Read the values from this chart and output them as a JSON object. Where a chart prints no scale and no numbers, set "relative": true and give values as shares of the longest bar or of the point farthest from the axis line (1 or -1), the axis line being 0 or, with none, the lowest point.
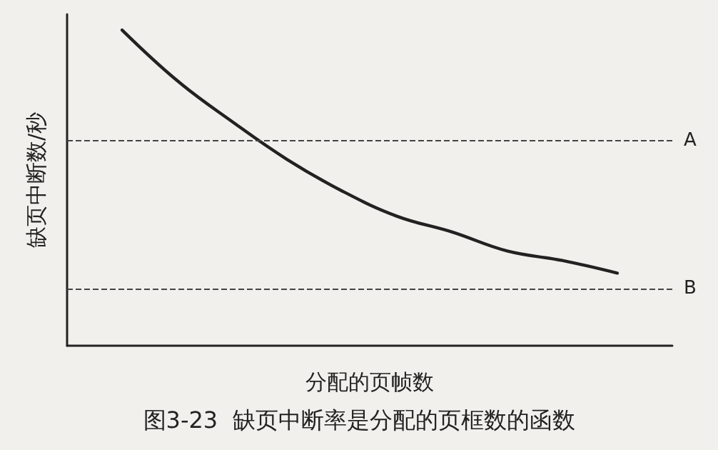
{
  "chart_data": {
    "type": "line",
    "relative": true,
    "title": "图3-23  缺页中断率是分配的页框数的函数",
    "xlabel": "分配的页帧数",
    "ylabel": "缺页中断数/秒",
    "categories": [
      null,
      null,
      null,
      null,
      null,
      null,
      null,
      null,
      null,
      null,
      null,
      null
    ],
    "series": [
      {
        "color": "#222222",
        "values": [
          null,
          1,
          0.84,
          0.71,
          0.59,
          0.49,
          0.41,
          0.36,
          0.3,
          0.27,
          0.23,
          null
        ]
      }
    ],
    "ref_lines": [
      {
        "axis": "y",
        "value": 0.65,
        "label": "A",
        "line_style": "dashed",
        "color": "#444444"
      },
      {
        "axis": "y",
        "value": 0.18,
        "label": "B",
        "line_style": "dashed",
        "color": "#444444"
      }
    ],
    "grid": false,
    "marker": "none",
    "line_style": "solid"
  }
}
